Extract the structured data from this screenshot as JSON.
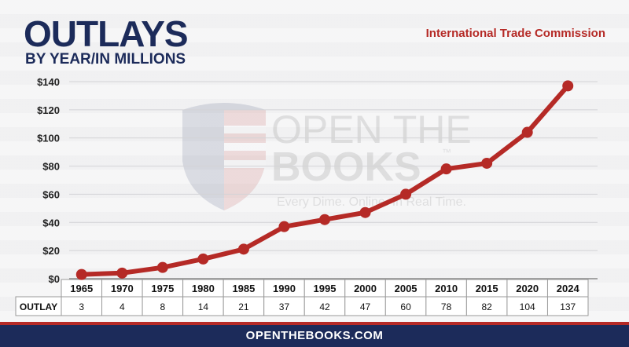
{
  "header": {
    "title": "OUTLAYS",
    "subtitle": "BY YEAR/IN MILLIONS",
    "agency": "International Trade Commission"
  },
  "watermark": {
    "line1": "OPEN THE",
    "line2": "BOOKS",
    "tm": "™",
    "tagline": "Every Dime. Online. In Real Time."
  },
  "footer": {
    "url": "OPENTHEBOOKS.COM"
  },
  "colors": {
    "line": "#b52a26",
    "navy": "#1c2b5a",
    "accent_red": "#b52a26"
  },
  "chart_data": {
    "type": "line",
    "title": "OUTLAYS",
    "subtitle": "BY YEAR/IN MILLIONS",
    "categories": [
      "1965",
      "1970",
      "1975",
      "1980",
      "1985",
      "1990",
      "1995",
      "2000",
      "2005",
      "2010",
      "2015",
      "2020",
      "2024"
    ],
    "series": [
      {
        "name": "OUTLAY",
        "values": [
          3,
          4,
          8,
          14,
          21,
          37,
          42,
          47,
          60,
          78,
          82,
          104,
          137
        ]
      }
    ],
    "y_ticks": [
      "$0",
      "$20",
      "$40",
      "$60",
      "$80",
      "$100",
      "$120",
      "$140"
    ],
    "ylim": [
      0,
      140
    ],
    "grid": true,
    "table": {
      "row_label": "OUTLAY",
      "values": [
        "3",
        "4",
        "8",
        "14",
        "21",
        "37",
        "42",
        "47",
        "60",
        "78",
        "82",
        "104",
        "137"
      ]
    }
  }
}
